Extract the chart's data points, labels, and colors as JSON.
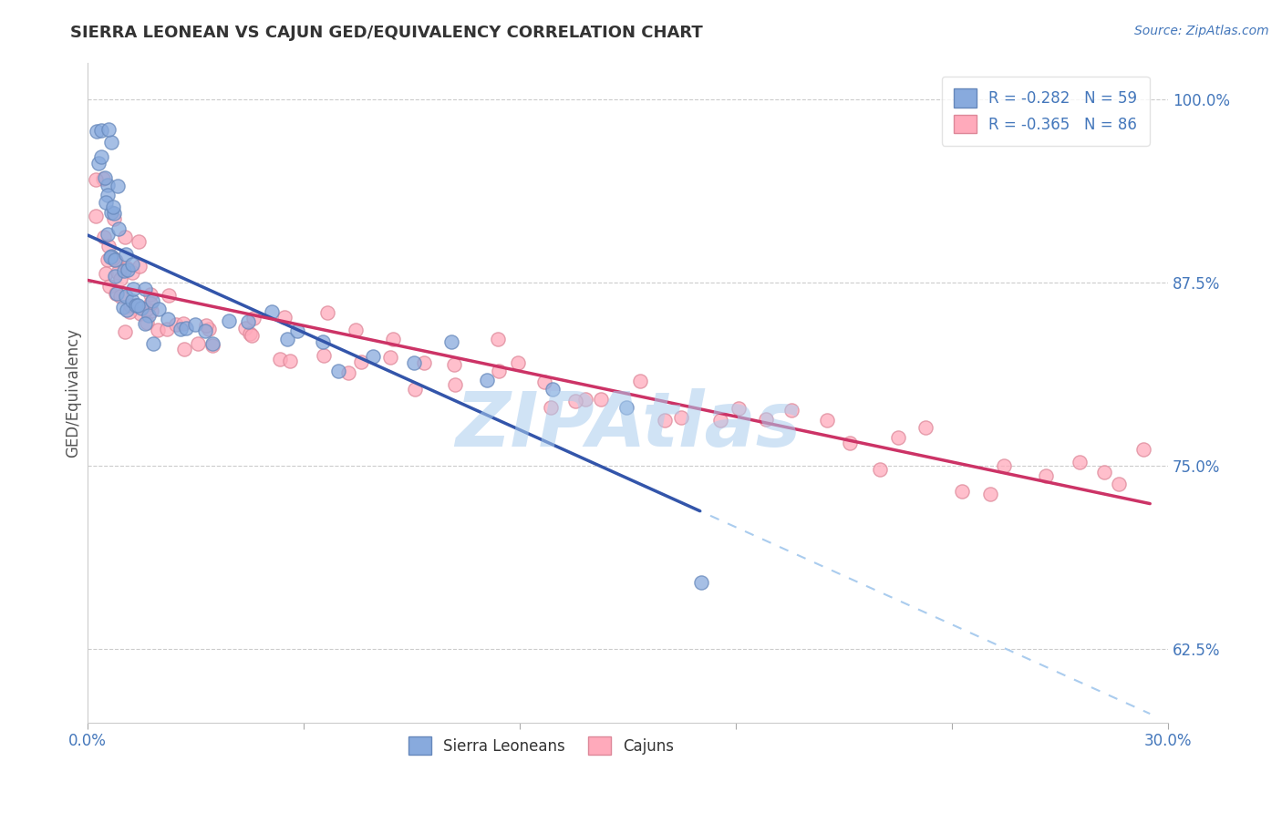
{
  "title": "SIERRA LEONEAN VS CAJUN GED/EQUIVALENCY CORRELATION CHART",
  "source": "Source: ZipAtlas.com",
  "ylabel": "GED/Equivalency",
  "y_ticks": [
    0.625,
    0.75,
    0.875,
    1.0
  ],
  "y_tick_labels": [
    "62.5%",
    "75.0%",
    "87.5%",
    "100.0%"
  ],
  "xmin": 0.0,
  "xmax": 0.3,
  "ymin": 0.575,
  "ymax": 1.025,
  "sierra_R": -0.282,
  "sierra_N": 59,
  "cajun_R": -0.365,
  "cajun_N": 86,
  "sierra_color": "#88AADD",
  "cajun_color": "#FFAABB",
  "sierra_edge_color": "#6688BB",
  "cajun_edge_color": "#DD8899",
  "sierra_line_color": "#3355AA",
  "cajun_line_color": "#CC3366",
  "dashed_line_color": "#AACCEE",
  "watermark": "ZIPAtlas",
  "watermark_color": "#AACCEE",
  "background_color": "#FFFFFF",
  "title_fontsize": 13,
  "legend_fontsize": 12,
  "axis_label_color": "#4477BB",
  "grid_color": "#CCCCCC"
}
